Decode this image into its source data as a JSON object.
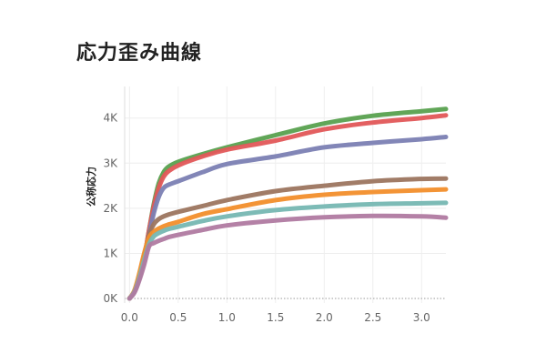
{
  "title": "応力歪み曲線",
  "chart_data": {
    "type": "line",
    "title": "応力歪み曲線",
    "xlabel": "",
    "ylabel": "公称応力",
    "xlim": [
      -0.05,
      3.25
    ],
    "ylim": [
      -100,
      4700
    ],
    "x_ticks": [
      "0.0",
      "0.5",
      "1.0",
      "1.5",
      "2.0",
      "2.5",
      "3.0"
    ],
    "x_tick_values": [
      0,
      0.5,
      1.0,
      1.5,
      2.0,
      2.5,
      3.0
    ],
    "y_ticks": [
      "0K",
      "1K",
      "2K",
      "3K",
      "4K"
    ],
    "y_tick_values": [
      0,
      1000,
      2000,
      3000,
      4000
    ],
    "grid": true,
    "series": [
      {
        "color": "#59a14f",
        "x": [
          0,
          0.05,
          0.1,
          0.15,
          0.2,
          0.25,
          0.3,
          0.35,
          0.4,
          0.5,
          0.75,
          1.0,
          1.5,
          2.0,
          2.5,
          3.0,
          3.25
        ],
        "y": [
          0,
          150,
          450,
          900,
          1500,
          2100,
          2550,
          2800,
          2920,
          3030,
          3200,
          3350,
          3620,
          3880,
          4050,
          4150,
          4200
        ]
      },
      {
        "color": "#e15759",
        "x": [
          0,
          0.05,
          0.1,
          0.15,
          0.2,
          0.25,
          0.3,
          0.35,
          0.4,
          0.5,
          0.75,
          1.0,
          1.5,
          2.0,
          2.5,
          3.0,
          3.25
        ],
        "y": [
          0,
          150,
          450,
          900,
          1500,
          2050,
          2450,
          2700,
          2820,
          2950,
          3150,
          3300,
          3500,
          3750,
          3900,
          4000,
          4060
        ]
      },
      {
        "color": "#7b7fb3",
        "x": [
          0,
          0.05,
          0.1,
          0.15,
          0.2,
          0.25,
          0.3,
          0.35,
          0.4,
          0.5,
          0.75,
          1.0,
          1.5,
          2.0,
          2.5,
          3.0,
          3.25
        ],
        "y": [
          0,
          150,
          450,
          900,
          1400,
          1900,
          2250,
          2450,
          2520,
          2600,
          2800,
          2980,
          3150,
          3350,
          3450,
          3530,
          3580
        ]
      },
      {
        "color": "#9c755f",
        "x": [
          0,
          0.05,
          0.1,
          0.15,
          0.2,
          0.25,
          0.3,
          0.35,
          0.4,
          0.5,
          0.75,
          1.0,
          1.5,
          2.0,
          2.5,
          3.0,
          3.25
        ],
        "y": [
          0,
          150,
          450,
          900,
          1400,
          1650,
          1760,
          1820,
          1860,
          1920,
          2050,
          2180,
          2380,
          2500,
          2600,
          2650,
          2660
        ]
      },
      {
        "color": "#f28e2b",
        "x": [
          0,
          0.05,
          0.1,
          0.15,
          0.2,
          0.25,
          0.3,
          0.35,
          0.4,
          0.5,
          0.75,
          1.0,
          1.5,
          2.0,
          2.5,
          3.0,
          3.25
        ],
        "y": [
          0,
          180,
          550,
          1000,
          1350,
          1480,
          1550,
          1600,
          1640,
          1700,
          1870,
          1980,
          2180,
          2300,
          2360,
          2400,
          2420
        ]
      },
      {
        "color": "#76b7b2",
        "x": [
          0,
          0.05,
          0.1,
          0.15,
          0.2,
          0.25,
          0.3,
          0.35,
          0.4,
          0.5,
          0.75,
          1.0,
          1.5,
          2.0,
          2.5,
          3.0,
          3.25
        ],
        "y": [
          0,
          150,
          450,
          850,
          1200,
          1380,
          1450,
          1500,
          1540,
          1590,
          1720,
          1820,
          1960,
          2040,
          2090,
          2110,
          2120
        ]
      },
      {
        "color": "#b07aa1",
        "x": [
          0,
          0.05,
          0.1,
          0.15,
          0.2,
          0.25,
          0.3,
          0.35,
          0.4,
          0.5,
          0.75,
          1.0,
          1.5,
          2.0,
          2.5,
          3.0,
          3.25
        ],
        "y": [
          0,
          130,
          400,
          750,
          1150,
          1230,
          1280,
          1320,
          1360,
          1410,
          1520,
          1620,
          1730,
          1800,
          1830,
          1820,
          1790
        ]
      }
    ]
  }
}
